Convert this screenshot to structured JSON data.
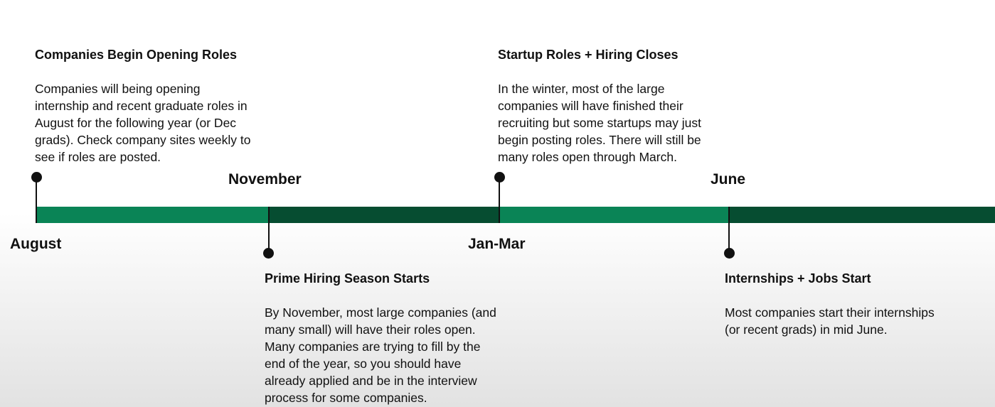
{
  "colors": {
    "green_light": "#0a8456",
    "green_dark": "#064d31",
    "text": "#111111"
  },
  "timeline": {
    "segments": [
      {
        "color": "#0a8456"
      },
      {
        "color": "#064d31"
      },
      {
        "color": "#0a8456"
      },
      {
        "color": "#064d31"
      }
    ],
    "months": [
      {
        "label": "August"
      },
      {
        "label": "November"
      },
      {
        "label": "Jan-Mar"
      },
      {
        "label": "June"
      }
    ]
  },
  "events": [
    {
      "title": "Companies Begin Opening Roles",
      "lines": [
        "Companies will being opening",
        "internship and recent graduate roles in",
        "August for the following year (or Dec",
        "grads). Check company sites weekly to",
        "see if roles are posted."
      ]
    },
    {
      "title": "Prime Hiring Season Starts",
      "lines": [
        "By November, most large companies (and",
        "many small) will have their roles open.",
        "Many companies are trying to fill by the",
        "end of the year, so you should have",
        "already applied and be in the interview",
        "process for some companies."
      ]
    },
    {
      "title": "Startup Roles + Hiring Closes",
      "lines": [
        "In the winter, most of the large",
        "companies will have finished their",
        "recruiting but some startups may just",
        "begin posting roles. There will still be",
        "many roles open through March."
      ]
    },
    {
      "title": "Internships + Jobs Start",
      "lines": [
        "Most companies start their internships",
        "(or recent grads) in mid June."
      ]
    }
  ]
}
